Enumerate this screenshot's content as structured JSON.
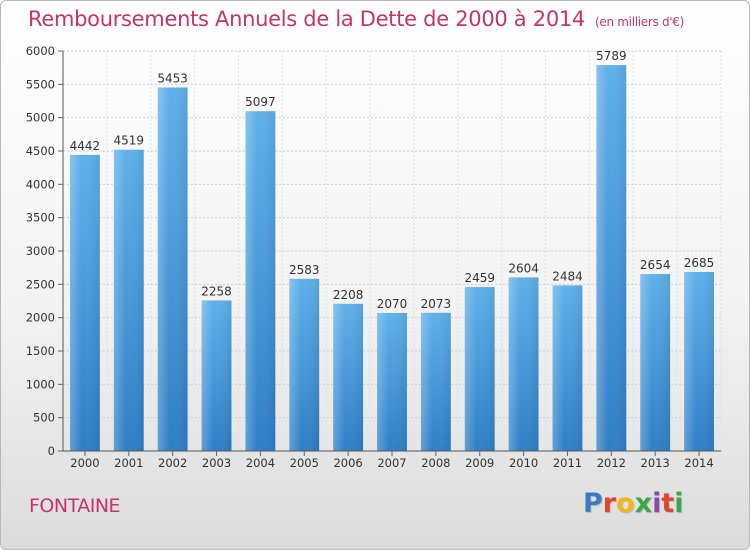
{
  "chart_data": {
    "type": "bar",
    "title": "Remboursements Annuels de la Dette de 2000 à 2014",
    "subtitle": "(en milliers d'€)",
    "categories": [
      "2000",
      "2001",
      "2002",
      "2003",
      "2004",
      "2005",
      "2006",
      "2007",
      "2008",
      "2009",
      "2010",
      "2011",
      "2012",
      "2013",
      "2014"
    ],
    "values": [
      4442,
      4519,
      5453,
      2258,
      5097,
      2583,
      2208,
      2070,
      2073,
      2459,
      2604,
      2484,
      5789,
      2654,
      2685
    ],
    "ylim": [
      0,
      6000
    ],
    "yticks": [
      0,
      500,
      1000,
      1500,
      2000,
      2500,
      3000,
      3500,
      4000,
      4500,
      5000,
      5500,
      6000
    ],
    "grid": true,
    "bar_color": "#4fa3e0"
  },
  "footer": {
    "town": "FONTAINE",
    "logo_letters": [
      "P",
      "r",
      "o",
      "x",
      "i",
      "t",
      "i"
    ]
  }
}
